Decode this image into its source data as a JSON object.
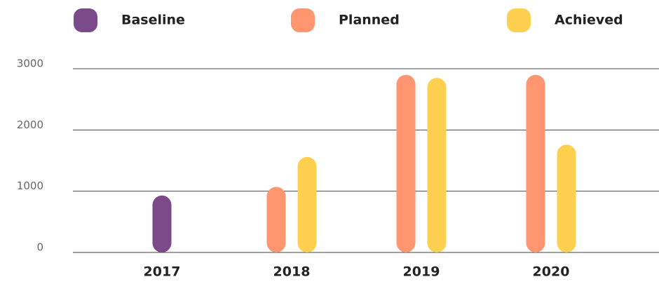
{
  "chart_data": {
    "type": "bar",
    "categories": [
      "2017",
      "2018",
      "2019",
      "2020"
    ],
    "series": [
      {
        "name": "Baseline",
        "color": "#7b4a8a",
        "values": [
          930,
          null,
          null,
          null
        ]
      },
      {
        "name": "Planned",
        "color": "#ff9670",
        "values": [
          null,
          1070,
          2900,
          2900
        ]
      },
      {
        "name": "Achieved",
        "color": "#ffd050",
        "values": [
          null,
          1560,
          2850,
          1760
        ]
      }
    ],
    "ylim": [
      0,
      3000
    ],
    "yticks": [
      0,
      1000,
      2000,
      3000
    ],
    "grid": true,
    "legend": "top"
  }
}
